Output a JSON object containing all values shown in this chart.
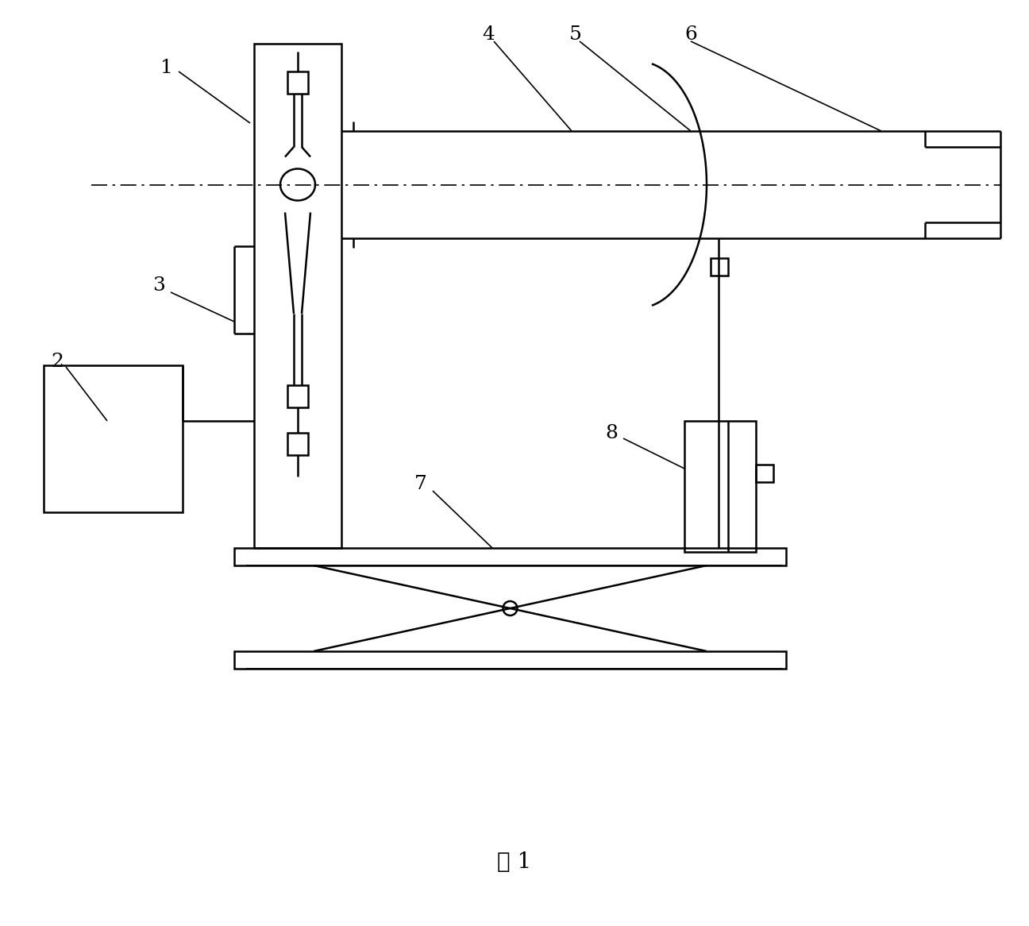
{
  "title": "图 1",
  "bg_color": "#ffffff",
  "line_color": "#000000",
  "lw": 1.8,
  "lw_thin": 1.2,
  "label_fs": 18,
  "caption_fs": 20
}
